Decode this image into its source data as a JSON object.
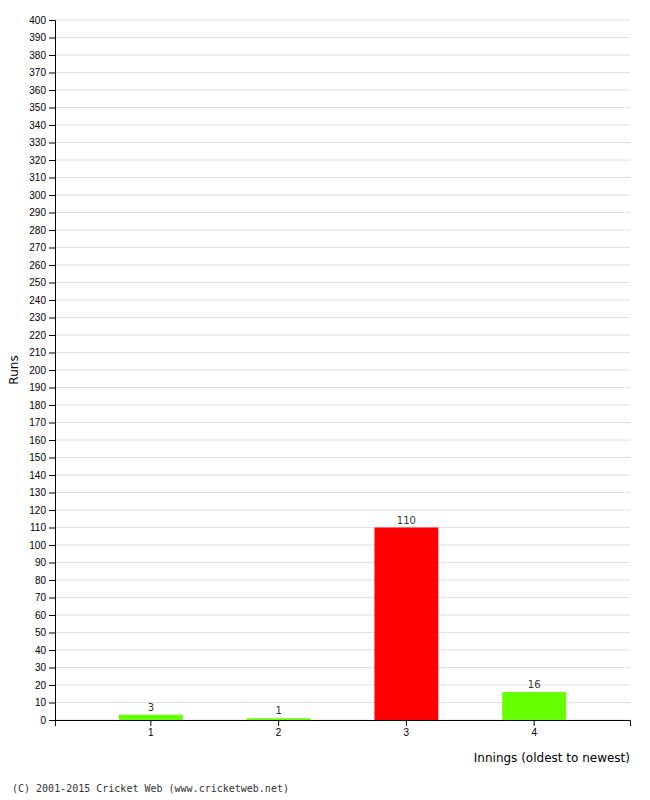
{
  "chart_data": {
    "type": "bar",
    "categories": [
      1,
      2,
      3,
      4
    ],
    "values": [
      3,
      1,
      110,
      16
    ],
    "colors": [
      "#66ff00",
      "#66ff00",
      "#ff0000",
      "#66ff00"
    ],
    "ylabel": "Runs",
    "xlabel": "Innings (oldest to newest)",
    "ylim": [
      0,
      400
    ],
    "yticks": [
      0,
      10,
      20,
      30,
      40,
      50,
      60,
      70,
      80,
      90,
      100,
      110,
      120,
      130,
      140,
      150,
      160,
      170,
      180,
      190,
      200,
      210,
      220,
      230,
      240,
      250,
      260,
      270,
      280,
      290,
      300,
      310,
      320,
      330,
      340,
      350,
      360,
      370,
      380,
      390,
      400
    ],
    "grid": true,
    "data_labels": true,
    "annotations": [
      "(C) 2001-2015 Cricket Web (www.cricketweb.net)"
    ]
  }
}
